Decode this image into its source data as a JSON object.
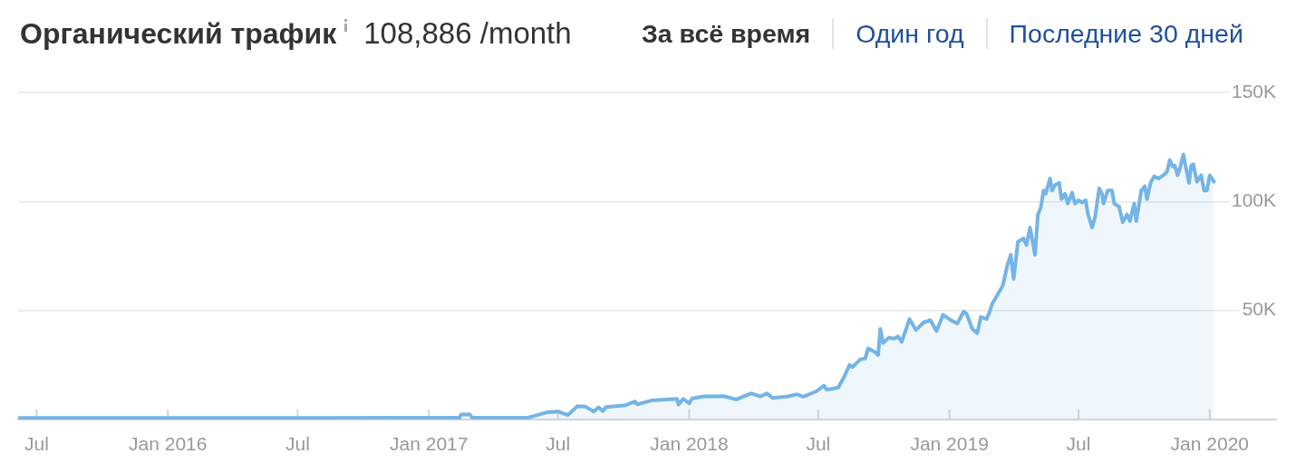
{
  "chart_data": {
    "type": "area",
    "title": "Органический трафик",
    "subtitle": "108,886 /month",
    "annotations": [
      "За всё время",
      "Один год",
      "Последние 30 дней"
    ],
    "x": [
      "2015-06-05",
      "2015-10-01",
      "2016-03-01",
      "2016-08-01",
      "2016-12-01",
      "2017-02-13",
      "2017-02-15",
      "2017-02-27",
      "2017-03-03",
      "2017-05-19",
      "2017-06-15",
      "2017-07-01",
      "2017-07-15",
      "2017-07-28",
      "2017-08-09",
      "2017-08-20",
      "2017-08-27",
      "2017-09-02",
      "2017-09-06",
      "2017-10-04",
      "2017-10-17",
      "2017-10-20",
      "2017-11-11",
      "2017-12-15",
      "2017-12-17",
      "2017-12-24",
      "2018-01-01",
      "2018-01-05",
      "2018-01-21",
      "2018-02-19",
      "2018-03-08",
      "2018-03-29",
      "2018-04-11",
      "2018-04-20",
      "2018-04-28",
      "2018-05-19",
      "2018-06-01",
      "2018-06-10",
      "2018-06-28",
      "2018-07-09",
      "2018-07-13",
      "2018-07-29",
      "2018-08-07",
      "2018-08-14",
      "2018-08-18",
      "2018-08-29",
      "2018-09-05",
      "2018-09-09",
      "2018-09-18",
      "2018-09-23",
      "2018-09-26",
      "2018-09-30",
      "2018-10-08",
      "2018-10-15",
      "2018-10-21",
      "2018-10-26",
      "2018-11-06",
      "2018-11-15",
      "2018-11-26",
      "2018-12-05",
      "2018-12-14",
      "2018-12-23",
      "2019-01-03",
      "2019-01-12",
      "2019-01-21",
      "2019-01-25",
      "2019-02-02",
      "2019-02-09",
      "2019-02-14",
      "2019-02-22",
      "2019-02-26",
      "2019-03-02",
      "2019-03-10",
      "2019-03-17",
      "2019-03-23",
      "2019-03-28",
      "2019-04-01",
      "2019-04-07",
      "2019-04-15",
      "2019-04-19",
      "2019-04-24",
      "2019-05-01",
      "2019-05-05",
      "2019-05-09",
      "2019-05-13",
      "2019-05-16",
      "2019-05-22",
      "2019-05-25",
      "2019-05-29",
      "2019-06-04",
      "2019-06-07",
      "2019-06-12",
      "2019-06-16",
      "2019-06-22",
      "2019-06-26",
      "2019-07-01",
      "2019-07-06",
      "2019-07-11",
      "2019-07-14",
      "2019-07-20",
      "2019-07-24",
      "2019-07-30",
      "2019-08-03",
      "2019-08-05",
      "2019-08-11",
      "2019-08-17",
      "2019-08-20",
      "2019-08-27",
      "2019-09-01",
      "2019-09-07",
      "2019-09-11",
      "2019-09-17",
      "2019-09-20",
      "2019-09-27",
      "2019-10-02",
      "2019-10-05",
      "2019-10-10",
      "2019-10-15",
      "2019-10-21",
      "2019-10-28",
      "2019-11-02",
      "2019-11-06",
      "2019-11-10",
      "2019-11-13",
      "2019-11-17",
      "2019-11-20",
      "2019-11-25",
      "2019-11-28",
      "2019-12-03",
      "2019-12-06",
      "2019-12-09",
      "2019-12-14",
      "2019-12-20",
      "2019-12-24",
      "2019-12-28",
      "2020-01-01",
      "2020-01-07"
    ],
    "series": [
      {
        "color": "#74b4e6",
        "values": [
          600,
          600,
          600,
          600,
          700,
          700,
          2200,
          2300,
          700,
          700,
          3200,
          3600,
          2000,
          6000,
          5800,
          3600,
          5500,
          3800,
          5600,
          6500,
          8200,
          6900,
          8800,
          9400,
          6800,
          9400,
          7300,
          9600,
          10500,
          10600,
          9100,
          11900,
          10500,
          11900,
          9800,
          10500,
          11500,
          10400,
          12800,
          15500,
          13600,
          14600,
          20000,
          25000,
          24000,
          27500,
          28000,
          32500,
          31000,
          29500,
          41500,
          35000,
          37500,
          37000,
          38000,
          35500,
          46000,
          41000,
          44500,
          45500,
          40500,
          48000,
          45500,
          44000,
          49500,
          48500,
          41500,
          39500,
          47000,
          46000,
          49000,
          53000,
          57500,
          61500,
          70500,
          75500,
          64500,
          81500,
          83000,
          80000,
          88000,
          75500,
          94000,
          97000,
          105000,
          103500,
          110500,
          105000,
          107500,
          108500,
          101000,
          103500,
          99000,
          104000,
          99000,
          100500,
          99500,
          100500,
          94500,
          88000,
          92500,
          106000,
          103500,
          99000,
          105000,
          105000,
          99000,
          97500,
          90500,
          94000,
          91000,
          99000,
          91000,
          105000,
          107000,
          101000,
          108500,
          111500,
          110500,
          112000,
          113500,
          119000,
          116000,
          116500,
          112000,
          115000,
          121500,
          116500,
          108500,
          116500,
          117000,
          109000,
          112000,
          105000,
          105000,
          112000,
          109000
        ]
      }
    ],
    "xlim": [
      "2015-06-05",
      "2020-04-03"
    ],
    "xticks": [
      {
        "value": "2015-07-01",
        "label": "Jul"
      },
      {
        "value": "2016-01-01",
        "label": "Jan 2016"
      },
      {
        "value": "2016-07-01",
        "label": "Jul"
      },
      {
        "value": "2017-01-01",
        "label": "Jan 2017"
      },
      {
        "value": "2017-07-01",
        "label": "Jul"
      },
      {
        "value": "2018-01-01",
        "label": "Jan 2018"
      },
      {
        "value": "2018-07-01",
        "label": "Jul"
      },
      {
        "value": "2019-01-01",
        "label": "Jan 2019"
      },
      {
        "value": "2019-07-01",
        "label": "Jul"
      },
      {
        "value": "2020-01-01",
        "label": "Jan 2020"
      }
    ],
    "ylim": [
      0,
      150000
    ],
    "yticks": [
      {
        "value": 0,
        "label": null
      },
      {
        "value": 50000,
        "label": "50K"
      },
      {
        "value": 100000,
        "label": "100K"
      },
      {
        "value": 150000,
        "label": "150K"
      }
    ],
    "grid": "y",
    "marker": "none"
  }
}
